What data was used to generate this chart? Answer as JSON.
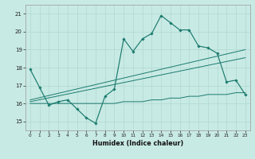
{
  "xlabel": "Humidex (Indice chaleur)",
  "bg_color": "#c8eae4",
  "line_color": "#1a7a6e",
  "grid_color": "#b0d8d0",
  "xlim": [
    -0.5,
    23.5
  ],
  "ylim": [
    14.5,
    21.5
  ],
  "yticks": [
    15,
    16,
    17,
    18,
    19,
    20,
    21
  ],
  "xticks": [
    0,
    1,
    2,
    3,
    4,
    5,
    6,
    7,
    8,
    9,
    10,
    11,
    12,
    13,
    14,
    15,
    16,
    17,
    18,
    19,
    20,
    21,
    22,
    23
  ],
  "line1_x": [
    0,
    1,
    2,
    3,
    4,
    5,
    6,
    7,
    8,
    9,
    10,
    11,
    12,
    13,
    14,
    15,
    16,
    17,
    18,
    19,
    20,
    21,
    22,
    23
  ],
  "line1_y": [
    17.9,
    16.9,
    15.9,
    16.1,
    16.2,
    15.7,
    15.2,
    14.9,
    16.4,
    16.8,
    19.6,
    18.9,
    19.6,
    19.9,
    20.9,
    20.5,
    20.1,
    20.1,
    19.2,
    19.1,
    18.8,
    17.2,
    17.3,
    16.5
  ],
  "line2_x": [
    0,
    1,
    2,
    3,
    4,
    5,
    6,
    7,
    8,
    9,
    10,
    11,
    12,
    13,
    14,
    15,
    16,
    17,
    18,
    19,
    20,
    21,
    22,
    23
  ],
  "line2_y": [
    16.0,
    16.0,
    16.0,
    16.0,
    16.0,
    16.0,
    16.0,
    16.0,
    16.0,
    16.0,
    16.1,
    16.1,
    16.1,
    16.2,
    16.2,
    16.3,
    16.3,
    16.4,
    16.4,
    16.5,
    16.5,
    16.5,
    16.6,
    16.6
  ],
  "line3_x": [
    0,
    23
  ],
  "line3_y": [
    16.1,
    18.55
  ],
  "line4_x": [
    0,
    23
  ],
  "line4_y": [
    16.2,
    19.0
  ]
}
